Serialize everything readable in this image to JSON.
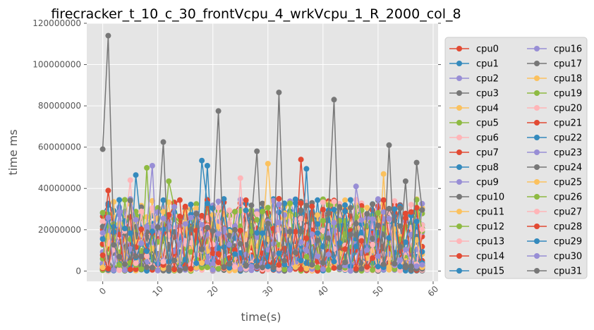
{
  "chart_data": {
    "type": "line",
    "title": "firecracker_t_10_c_30_frontVcpu_4_wrkVcpu_1_R_2000_col_8",
    "xlabel": "time(s)",
    "ylabel": "time ms",
    "xlim": [
      -2.9,
      60.9
    ],
    "ylim": [
      -5000000,
      120000000
    ],
    "xticks": [
      0,
      10,
      20,
      30,
      40,
      50,
      60
    ],
    "xtick_labels": [
      "0",
      "10",
      "20",
      "30",
      "40",
      "50",
      "60"
    ],
    "yticks": [
      0,
      20000000,
      40000000,
      60000000,
      80000000,
      100000000,
      120000000
    ],
    "ytick_labels": [
      "0",
      "20000000",
      "40000000",
      "60000000",
      "80000000",
      "100000000",
      "120000000"
    ],
    "grid": true,
    "legend_position": "outside-right",
    "legend_columns": 2,
    "x_count": 59,
    "series": [
      {
        "name": "cpu0",
        "color": "#E24A33"
      },
      {
        "name": "cpu1",
        "color": "#348ABD"
      },
      {
        "name": "cpu2",
        "color": "#988ED5"
      },
      {
        "name": "cpu3",
        "color": "#777777"
      },
      {
        "name": "cpu4",
        "color": "#FBC15E"
      },
      {
        "name": "cpu5",
        "color": "#8EBA42"
      },
      {
        "name": "cpu6",
        "color": "#FFB5B8"
      },
      {
        "name": "cpu7",
        "color": "#E24A33"
      },
      {
        "name": "cpu8",
        "color": "#348ABD"
      },
      {
        "name": "cpu9",
        "color": "#988ED5"
      },
      {
        "name": "cpu10",
        "color": "#777777"
      },
      {
        "name": "cpu11",
        "color": "#FBC15E"
      },
      {
        "name": "cpu12",
        "color": "#8EBA42"
      },
      {
        "name": "cpu13",
        "color": "#FFB5B8"
      },
      {
        "name": "cpu14",
        "color": "#E24A33"
      },
      {
        "name": "cpu15",
        "color": "#348ABD"
      },
      {
        "name": "cpu16",
        "color": "#988ED5"
      },
      {
        "name": "cpu17",
        "color": "#777777"
      },
      {
        "name": "cpu18",
        "color": "#FBC15E"
      },
      {
        "name": "cpu19",
        "color": "#8EBA42"
      },
      {
        "name": "cpu20",
        "color": "#FFB5B8"
      },
      {
        "name": "cpu21",
        "color": "#E24A33"
      },
      {
        "name": "cpu22",
        "color": "#348ABD"
      },
      {
        "name": "cpu23",
        "color": "#988ED5"
      },
      {
        "name": "cpu24",
        "color": "#777777"
      },
      {
        "name": "cpu25",
        "color": "#FBC15E"
      },
      {
        "name": "cpu26",
        "color": "#8EBA42"
      },
      {
        "name": "cpu27",
        "color": "#FFB5B8"
      },
      {
        "name": "cpu28",
        "color": "#E24A33"
      },
      {
        "name": "cpu29",
        "color": "#348ABD"
      },
      {
        "name": "cpu30",
        "color": "#988ED5"
      },
      {
        "name": "cpu31",
        "color": "#777777"
      }
    ],
    "highlight_peaks": [
      {
        "series": "cpu31",
        "points": [
          [
            0,
            59000000
          ],
          [
            1,
            114000000
          ],
          [
            11,
            62500000
          ],
          [
            21,
            77500000
          ],
          [
            32,
            86500000
          ],
          [
            42,
            83000000
          ],
          [
            52,
            61000000
          ],
          [
            57,
            52500000
          ]
        ]
      },
      {
        "series": "cpu10",
        "points": [
          [
            28,
            58000000
          ],
          [
            55,
            43500000
          ]
        ]
      },
      {
        "series": "cpu25",
        "points": [
          [
            30,
            52000000
          ],
          [
            51,
            47000000
          ]
        ]
      },
      {
        "series": "cpu29",
        "points": [
          [
            18,
            53500000
          ],
          [
            37,
            49500000
          ]
        ]
      },
      {
        "series": "cpu26",
        "points": [
          [
            8,
            50000000
          ],
          [
            12,
            43500000
          ]
        ]
      },
      {
        "series": "cpu30",
        "points": [
          [
            9,
            51000000
          ],
          [
            46,
            41000000
          ]
        ]
      },
      {
        "series": "cpu14",
        "points": [
          [
            36,
            54000000
          ],
          [
            1,
            39000000
          ]
        ]
      },
      {
        "series": "cpu22",
        "points": [
          [
            19,
            51000000
          ],
          [
            6,
            46500000
          ]
        ]
      },
      {
        "series": "cpu27",
        "points": [
          [
            25,
            45000000
          ],
          [
            5,
            44000000
          ]
        ]
      }
    ]
  }
}
